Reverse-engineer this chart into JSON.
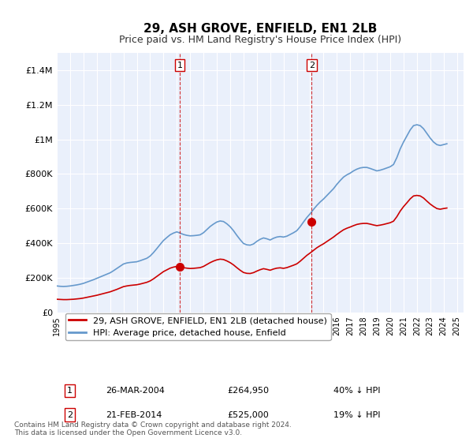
{
  "title": "29, ASH GROVE, ENFIELD, EN1 2LB",
  "subtitle": "Price paid vs. HM Land Registry's House Price Index (HPI)",
  "ylabel": "",
  "background_color": "#ffffff",
  "plot_bg_color": "#eaf0fb",
  "grid_color": "#ffffff",
  "hpi_color": "#6699cc",
  "price_color": "#cc0000",
  "sale1_x": 2004.23,
  "sale1_y": 264950,
  "sale1_label": "1",
  "sale2_x": 2014.12,
  "sale2_y": 525000,
  "sale2_label": "2",
  "vline1_x": 2004.23,
  "vline2_x": 2014.12,
  "ylim": [
    0,
    1500000
  ],
  "xlim": [
    1995,
    2025.5
  ],
  "yticks": [
    0,
    200000,
    400000,
    600000,
    800000,
    1000000,
    1200000,
    1400000
  ],
  "ytick_labels": [
    "£0",
    "£200K",
    "£400K",
    "£600K",
    "£800K",
    "£1M",
    "£1.2M",
    "£1.4M"
  ],
  "xticks": [
    1995,
    1996,
    1997,
    1998,
    1999,
    2000,
    2001,
    2002,
    2003,
    2004,
    2005,
    2006,
    2007,
    2008,
    2009,
    2010,
    2011,
    2012,
    2013,
    2014,
    2015,
    2016,
    2017,
    2018,
    2019,
    2020,
    2021,
    2022,
    2023,
    2024,
    2025
  ],
  "legend_label_red": "29, ASH GROVE, ENFIELD, EN1 2LB (detached house)",
  "legend_label_blue": "HPI: Average price, detached house, Enfield",
  "table_row1": [
    "1",
    "26-MAR-2004",
    "£264,950",
    "40% ↓ HPI"
  ],
  "table_row2": [
    "2",
    "21-FEB-2014",
    "£525,000",
    "19% ↓ HPI"
  ],
  "footnote": "Contains HM Land Registry data © Crown copyright and database right 2024.\nThis data is licensed under the Open Government Licence v3.0.",
  "hpi_data_x": [
    1995.0,
    1995.25,
    1995.5,
    1995.75,
    1996.0,
    1996.25,
    1996.5,
    1996.75,
    1997.0,
    1997.25,
    1997.5,
    1997.75,
    1998.0,
    1998.25,
    1998.5,
    1998.75,
    1999.0,
    1999.25,
    1999.5,
    1999.75,
    2000.0,
    2000.25,
    2000.5,
    2000.75,
    2001.0,
    2001.25,
    2001.5,
    2001.75,
    2002.0,
    2002.25,
    2002.5,
    2002.75,
    2003.0,
    2003.25,
    2003.5,
    2003.75,
    2004.0,
    2004.25,
    2004.5,
    2004.75,
    2005.0,
    2005.25,
    2005.5,
    2005.75,
    2006.0,
    2006.25,
    2006.5,
    2006.75,
    2007.0,
    2007.25,
    2007.5,
    2007.75,
    2008.0,
    2008.25,
    2008.5,
    2008.75,
    2009.0,
    2009.25,
    2009.5,
    2009.75,
    2010.0,
    2010.25,
    2010.5,
    2010.75,
    2011.0,
    2011.25,
    2011.5,
    2011.75,
    2012.0,
    2012.25,
    2012.5,
    2012.75,
    2013.0,
    2013.25,
    2013.5,
    2013.75,
    2014.0,
    2014.25,
    2014.5,
    2014.75,
    2015.0,
    2015.25,
    2015.5,
    2015.75,
    2016.0,
    2016.25,
    2016.5,
    2016.75,
    2017.0,
    2017.25,
    2017.5,
    2017.75,
    2018.0,
    2018.25,
    2018.5,
    2018.75,
    2019.0,
    2019.25,
    2019.5,
    2019.75,
    2020.0,
    2020.25,
    2020.5,
    2020.75,
    2021.0,
    2021.25,
    2021.5,
    2021.75,
    2022.0,
    2022.25,
    2022.5,
    2022.75,
    2023.0,
    2023.25,
    2023.5,
    2023.75,
    2024.0,
    2024.25
  ],
  "hpi_data_y": [
    152000,
    150000,
    149000,
    150000,
    152000,
    155000,
    158000,
    162000,
    167000,
    174000,
    181000,
    188000,
    196000,
    204000,
    212000,
    220000,
    228000,
    240000,
    253000,
    266000,
    279000,
    285000,
    288000,
    290000,
    292000,
    298000,
    305000,
    312000,
    325000,
    345000,
    368000,
    392000,
    415000,
    432000,
    448000,
    458000,
    465000,
    458000,
    450000,
    445000,
    442000,
    443000,
    445000,
    448000,
    460000,
    478000,
    496000,
    510000,
    522000,
    528000,
    525000,
    512000,
    495000,
    472000,
    445000,
    420000,
    398000,
    390000,
    388000,
    395000,
    410000,
    422000,
    430000,
    425000,
    418000,
    428000,
    435000,
    438000,
    435000,
    440000,
    450000,
    460000,
    472000,
    495000,
    522000,
    548000,
    570000,
    595000,
    618000,
    638000,
    655000,
    675000,
    695000,
    715000,
    740000,
    762000,
    782000,
    795000,
    805000,
    818000,
    828000,
    835000,
    838000,
    838000,
    832000,
    825000,
    818000,
    822000,
    828000,
    835000,
    842000,
    855000,
    895000,
    945000,
    985000,
    1020000,
    1055000,
    1080000,
    1085000,
    1080000,
    1062000,
    1035000,
    1008000,
    985000,
    970000,
    965000,
    970000,
    975000
  ],
  "price_data_x": [
    1995.0,
    1995.25,
    1995.5,
    1995.75,
    1996.0,
    1996.25,
    1996.5,
    1996.75,
    1997.0,
    1997.25,
    1997.5,
    1997.75,
    1998.0,
    1998.25,
    1998.5,
    1998.75,
    1999.0,
    1999.25,
    1999.5,
    1999.75,
    2000.0,
    2000.25,
    2000.5,
    2000.75,
    2001.0,
    2001.25,
    2001.5,
    2001.75,
    2002.0,
    2002.25,
    2002.5,
    2002.75,
    2003.0,
    2003.25,
    2003.5,
    2003.75,
    2004.0,
    2004.25,
    2004.5,
    2004.75,
    2005.0,
    2005.25,
    2005.5,
    2005.75,
    2006.0,
    2006.25,
    2006.5,
    2006.75,
    2007.0,
    2007.25,
    2007.5,
    2007.75,
    2008.0,
    2008.25,
    2008.5,
    2008.75,
    2009.0,
    2009.25,
    2009.5,
    2009.75,
    2010.0,
    2010.25,
    2010.5,
    2010.75,
    2011.0,
    2011.25,
    2011.5,
    2011.75,
    2012.0,
    2012.25,
    2012.5,
    2012.75,
    2013.0,
    2013.25,
    2013.5,
    2013.75,
    2014.0,
    2014.25,
    2014.5,
    2014.75,
    2015.0,
    2015.25,
    2015.5,
    2015.75,
    2016.0,
    2016.25,
    2016.5,
    2016.75,
    2017.0,
    2017.25,
    2017.5,
    2017.75,
    2018.0,
    2018.25,
    2018.5,
    2018.75,
    2019.0,
    2019.25,
    2019.5,
    2019.75,
    2020.0,
    2020.25,
    2020.5,
    2020.75,
    2021.0,
    2021.25,
    2021.5,
    2021.75,
    2022.0,
    2022.25,
    2022.5,
    2022.75,
    2023.0,
    2023.25,
    2023.5,
    2023.75,
    2024.0,
    2024.25
  ],
  "price_data_y": [
    75000,
    74000,
    73000,
    73000,
    74000,
    75000,
    77000,
    79000,
    82000,
    86000,
    90000,
    94000,
    98000,
    103000,
    108000,
    113000,
    118000,
    125000,
    132000,
    140000,
    148000,
    152000,
    155000,
    157000,
    159000,
    163000,
    168000,
    173000,
    181000,
    193000,
    207000,
    221000,
    235000,
    245000,
    255000,
    261000,
    265000,
    262000,
    258000,
    255000,
    253000,
    254000,
    256000,
    258000,
    265000,
    276000,
    287000,
    296000,
    303000,
    307000,
    305000,
    297000,
    287000,
    274000,
    258000,
    243000,
    230000,
    225000,
    224000,
    229000,
    238000,
    246000,
    252000,
    248000,
    243000,
    250000,
    255000,
    257000,
    254000,
    258000,
    265000,
    272000,
    280000,
    295000,
    312000,
    329000,
    343000,
    358000,
    373000,
    385000,
    396000,
    409000,
    422000,
    435000,
    450000,
    464000,
    477000,
    486000,
    493000,
    501000,
    508000,
    512000,
    514000,
    514000,
    510000,
    505000,
    501000,
    504000,
    508000,
    513000,
    518000,
    527000,
    553000,
    585000,
    611000,
    633000,
    656000,
    673000,
    676000,
    673000,
    661000,
    643000,
    626000,
    612000,
    600000,
    596000,
    600000,
    603000
  ]
}
